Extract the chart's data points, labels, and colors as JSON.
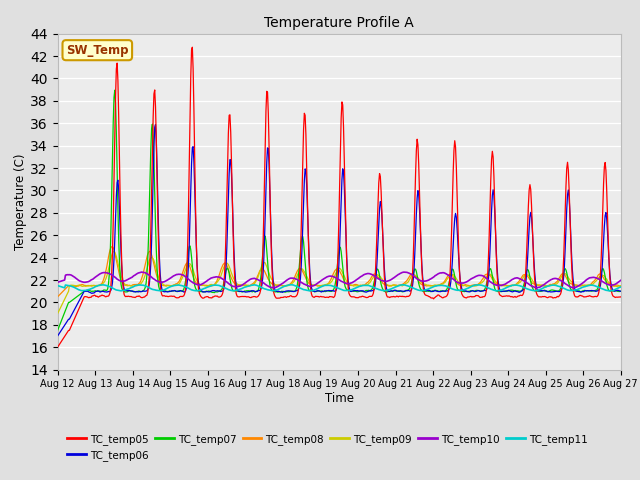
{
  "title": "Temperature Profile A",
  "xlabel": "Time",
  "ylabel": "Temperature (C)",
  "ylim": [
    14,
    44
  ],
  "yticks": [
    14,
    16,
    18,
    20,
    22,
    24,
    26,
    28,
    30,
    32,
    34,
    36,
    38,
    40,
    42,
    44
  ],
  "xlim": [
    0,
    15
  ],
  "bg_color": "#e0e0e0",
  "plot_bg_color": "#ececec",
  "series_colors": {
    "TC_temp05": "#ff0000",
    "TC_temp06": "#0000dd",
    "TC_temp07": "#00cc00",
    "TC_temp08": "#ff8800",
    "TC_temp09": "#cccc00",
    "TC_temp10": "#9900cc",
    "TC_temp11": "#00cccc"
  },
  "sw_temp_label": "SW_Temp",
  "sw_temp_color": "#993300",
  "sw_temp_bg": "#ffffcc",
  "sw_temp_border": "#cc9900",
  "tick_labels": [
    "Aug 12",
    "Aug 13",
    "Aug 14",
    "Aug 15",
    "Aug 16",
    "Aug 17",
    "Aug 18",
    "Aug 19",
    "Aug 20",
    "Aug 21",
    "Aug 22",
    "Aug 23",
    "Aug 24",
    "Aug 25",
    "Aug 26",
    "Aug 27"
  ],
  "figsize": [
    6.4,
    4.8
  ],
  "dpi": 100
}
